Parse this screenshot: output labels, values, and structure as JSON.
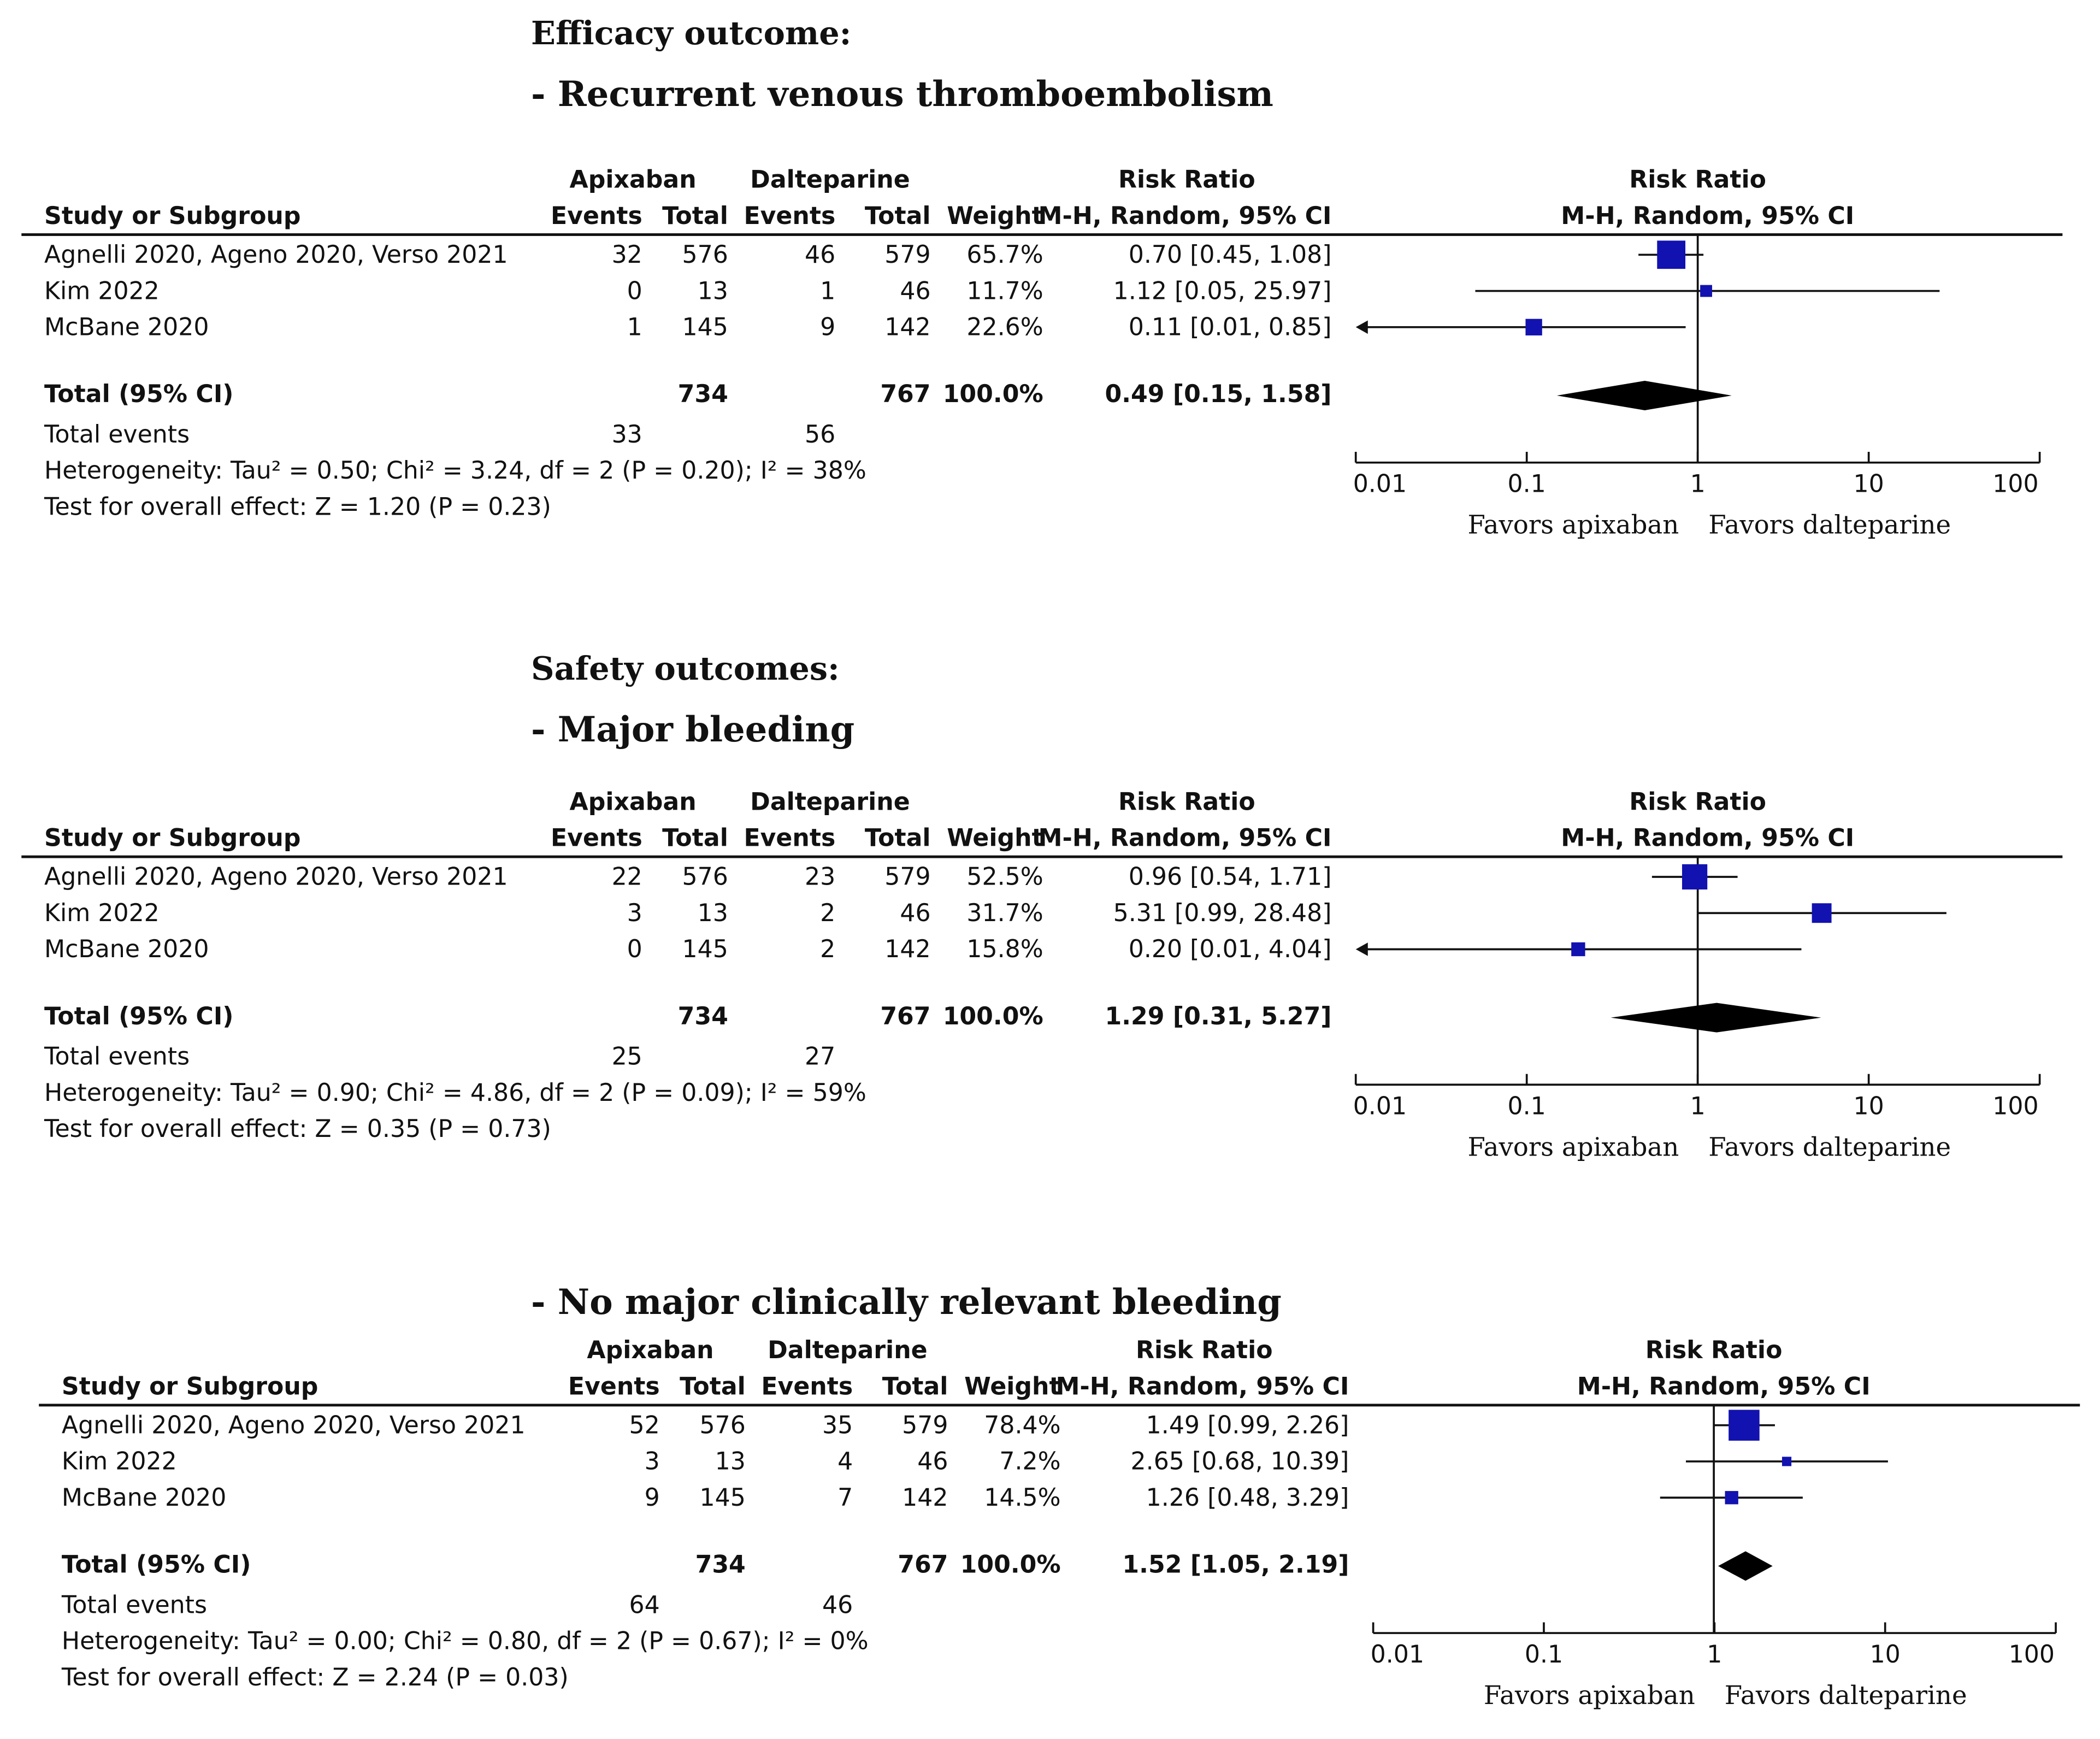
{
  "headings": {
    "efficacy": "Efficacy outcome:",
    "recurrent": "- Recurrent venous thromboembolism",
    "safety": "Safety outcomes:",
    "major": "- Major bleeding",
    "nomajor": "- No major clinically relevant bleeding"
  },
  "columns": {
    "group1": "Apixaban",
    "group2": "Dalteparine",
    "study": "Study or Subgroup",
    "events": "Events",
    "total": "Total",
    "weight": "Weight",
    "rr_title": "Risk Ratio",
    "rr_method": "M-H, Random, 95% CI"
  },
  "colors": {
    "marker": "#1212b0",
    "diamond": "#000000",
    "line": "#111111"
  },
  "chart_data": [
    {
      "type": "forest",
      "measure": "Risk Ratio",
      "x_scale": "log",
      "xlim": [
        0.01,
        100
      ],
      "ticks": [
        "0.01",
        "0.1",
        "1",
        "10",
        "100"
      ],
      "favors_left": "Favors apixaban",
      "favors_right": "Favors dalteparine",
      "studies": [
        {
          "name": "Agnelli 2020, Ageno 2020, Verso 2021",
          "e1": "32",
          "n1": "576",
          "e2": "46",
          "n2": "579",
          "weight": "65.7%",
          "ci_text": "0.70 [0.45, 1.08]",
          "rr": 0.7,
          "lo": 0.45,
          "hi": 1.08,
          "w": 65.7
        },
        {
          "name": "Kim 2022",
          "e1": "0",
          "n1": "13",
          "e2": "1",
          "n2": "46",
          "weight": "11.7%",
          "ci_text": "1.12 [0.05, 25.97]",
          "rr": 1.12,
          "lo": 0.05,
          "hi": 25.97,
          "w": 11.7
        },
        {
          "name": "McBane 2020",
          "e1": "1",
          "n1": "145",
          "e2": "9",
          "n2": "142",
          "weight": "22.6%",
          "ci_text": "0.11 [0.01, 0.85]",
          "rr": 0.11,
          "lo": 0.01,
          "hi": 0.85,
          "w": 22.6
        }
      ],
      "total": {
        "label": "Total (95% CI)",
        "n1": "734",
        "n2": "767",
        "weight": "100.0%",
        "ci_text": "0.49 [0.15, 1.58]",
        "rr": 0.49,
        "lo": 0.15,
        "hi": 1.58
      },
      "total_events": {
        "label": "Total events",
        "e1": "33",
        "e2": "56"
      },
      "heterogeneity": "Heterogeneity: Tau² = 0.50; Chi² = 3.24, df = 2 (P = 0.20); I² = 38%",
      "overall": "Test for overall effect: Z = 1.20 (P = 0.23)"
    },
    {
      "type": "forest",
      "measure": "Risk Ratio",
      "x_scale": "log",
      "xlim": [
        0.01,
        100
      ],
      "ticks": [
        "0.01",
        "0.1",
        "1",
        "10",
        "100"
      ],
      "favors_left": "Favors apixaban",
      "favors_right": "Favors dalteparine",
      "studies": [
        {
          "name": "Agnelli 2020, Ageno 2020, Verso 2021",
          "e1": "22",
          "n1": "576",
          "e2": "23",
          "n2": "579",
          "weight": "52.5%",
          "ci_text": "0.96 [0.54, 1.71]",
          "rr": 0.96,
          "lo": 0.54,
          "hi": 1.71,
          "w": 52.5
        },
        {
          "name": "Kim 2022",
          "e1": "3",
          "n1": "13",
          "e2": "2",
          "n2": "46",
          "weight": "31.7%",
          "ci_text": "5.31 [0.99, 28.48]",
          "rr": 5.31,
          "lo": 0.99,
          "hi": 28.48,
          "w": 31.7
        },
        {
          "name": "McBane 2020",
          "e1": "0",
          "n1": "145",
          "e2": "2",
          "n2": "142",
          "weight": "15.8%",
          "ci_text": "0.20 [0.01, 4.04]",
          "rr": 0.2,
          "lo": 0.01,
          "hi": 4.04,
          "w": 15.8
        }
      ],
      "total": {
        "label": "Total (95% CI)",
        "n1": "734",
        "n2": "767",
        "weight": "100.0%",
        "ci_text": "1.29 [0.31, 5.27]",
        "rr": 1.29,
        "lo": 0.31,
        "hi": 5.27
      },
      "total_events": {
        "label": "Total events",
        "e1": "25",
        "e2": "27"
      },
      "heterogeneity": "Heterogeneity: Tau² = 0.90; Chi² = 4.86, df = 2 (P = 0.09); I² = 59%",
      "overall": "Test for overall effect: Z = 0.35 (P = 0.73)"
    },
    {
      "type": "forest",
      "measure": "Risk Ratio",
      "x_scale": "log",
      "xlim": [
        0.01,
        100
      ],
      "ticks": [
        "0.01",
        "0.1",
        "1",
        "10",
        "100"
      ],
      "favors_left": "Favors apixaban",
      "favors_right": "Favors dalteparine",
      "studies": [
        {
          "name": "Agnelli 2020, Ageno 2020, Verso 2021",
          "e1": "52",
          "n1": "576",
          "e2": "35",
          "n2": "579",
          "weight": "78.4%",
          "ci_text": "1.49 [0.99, 2.26]",
          "rr": 1.49,
          "lo": 0.99,
          "hi": 2.26,
          "w": 78.4
        },
        {
          "name": "Kim 2022",
          "e1": "3",
          "n1": "13",
          "e2": "4",
          "n2": "46",
          "weight": "7.2%",
          "ci_text": "2.65 [0.68, 10.39]",
          "rr": 2.65,
          "lo": 0.68,
          "hi": 10.39,
          "w": 7.2
        },
        {
          "name": "McBane 2020",
          "e1": "9",
          "n1": "145",
          "e2": "7",
          "n2": "142",
          "weight": "14.5%",
          "ci_text": "1.26 [0.48, 3.29]",
          "rr": 1.26,
          "lo": 0.48,
          "hi": 3.29,
          "w": 14.5
        }
      ],
      "total": {
        "label": "Total (95% CI)",
        "n1": "734",
        "n2": "767",
        "weight": "100.0%",
        "ci_text": "1.52 [1.05, 2.19]",
        "rr": 1.52,
        "lo": 1.05,
        "hi": 2.19
      },
      "total_events": {
        "label": "Total events",
        "e1": "64",
        "e2": "46"
      },
      "heterogeneity": "Heterogeneity: Tau² = 0.00; Chi² = 0.80, df = 2 (P = 0.67); I² = 0%",
      "overall": "Test for overall effect: Z = 2.24 (P = 0.03)"
    }
  ]
}
